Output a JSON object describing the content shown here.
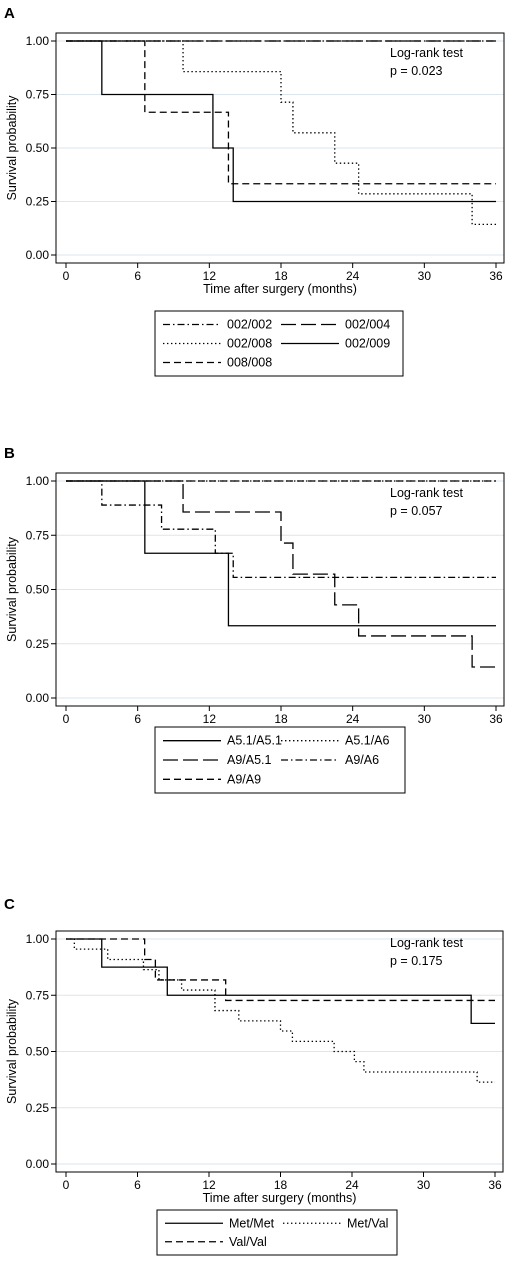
{
  "chart_data": [
    {
      "panel": "A",
      "type": "line",
      "step": true,
      "xlabel": "Time after surgery (months)",
      "ylabel": "Survival probability",
      "xlim": [
        0,
        36
      ],
      "ylim": [
        0,
        1
      ],
      "xticks": [
        0,
        6,
        12,
        18,
        24,
        30,
        36
      ],
      "yticks": [
        "0.00",
        "0.25",
        "0.50",
        "0.75",
        "1.00"
      ],
      "annotation": [
        "Log-rank test",
        "p = 0.023"
      ],
      "legend_position": "below",
      "series": [
        {
          "name": "002/002",
          "dash": "dashdot",
          "x": [
            0,
            36
          ],
          "y": [
            1,
            1
          ]
        },
        {
          "name": "002/004",
          "dash": "longdash",
          "x": [
            0,
            36
          ],
          "y": [
            1,
            1
          ]
        },
        {
          "name": "002/008",
          "dash": "dot",
          "x": [
            0,
            9.8,
            18,
            19,
            22.5,
            24.5,
            34,
            36
          ],
          "y": [
            1,
            0.857,
            0.714,
            0.571,
            0.429,
            0.286,
            0.143,
            0.143
          ]
        },
        {
          "name": "002/009",
          "dash": "solid",
          "x": [
            0,
            3,
            12.3,
            14,
            36
          ],
          "y": [
            1,
            0.75,
            0.5,
            0.25,
            0.25
          ]
        },
        {
          "name": "008/008",
          "dash": "dash",
          "x": [
            0,
            6.6,
            13.6,
            36
          ],
          "y": [
            1,
            0.667,
            0.333,
            0.333
          ]
        }
      ]
    },
    {
      "panel": "B",
      "type": "line",
      "step": true,
      "xlabel": "Time after surgery (months)",
      "ylabel": "Survival probability",
      "xlim": [
        0,
        36
      ],
      "ylim": [
        0,
        1
      ],
      "xticks": [
        0,
        6,
        12,
        18,
        24,
        30,
        36
      ],
      "yticks": [
        "0.00",
        "0.25",
        "0.50",
        "0.75",
        "1.00"
      ],
      "annotation": [
        "Log-rank test",
        "p = 0.057"
      ],
      "legend_position": "below",
      "series": [
        {
          "name": "A5.1/A5.1",
          "dash": "solid",
          "x": [
            0,
            6.6,
            13.6,
            36
          ],
          "y": [
            1,
            0.667,
            0.333,
            0.333
          ]
        },
        {
          "name": "A5.1/A6",
          "dash": "dot",
          "x": [
            0,
            36
          ],
          "y": [
            1,
            1
          ]
        },
        {
          "name": "A9/A5.1",
          "dash": "longdash",
          "x": [
            0,
            9.8,
            18,
            19,
            22.5,
            24.5,
            34,
            36
          ],
          "y": [
            1,
            0.857,
            0.714,
            0.571,
            0.429,
            0.286,
            0.143,
            0.143
          ]
        },
        {
          "name": "A9/A6",
          "dash": "dashdot",
          "x": [
            0,
            3,
            8,
            12.5,
            14,
            36
          ],
          "y": [
            1,
            0.889,
            0.778,
            0.667,
            0.556,
            0.556
          ]
        },
        {
          "name": "A9/A9",
          "dash": "dash",
          "x": [
            0,
            36
          ],
          "y": [
            1,
            1
          ]
        }
      ]
    },
    {
      "panel": "C",
      "type": "line",
      "step": true,
      "xlabel": "Time after surgery (months)",
      "ylabel": "Survival probability",
      "xlim": [
        0,
        36
      ],
      "ylim": [
        0,
        1
      ],
      "xticks": [
        0,
        6,
        12,
        18,
        24,
        30,
        36
      ],
      "yticks": [
        "0.00",
        "0.25",
        "0.50",
        "0.75",
        "1.00"
      ],
      "annotation": [
        "Log-rank test",
        "p = 0.175"
      ],
      "legend_position": "below",
      "series": [
        {
          "name": "Met/Met",
          "dash": "solid",
          "x": [
            0,
            3,
            8.5,
            34,
            36
          ],
          "y": [
            1,
            0.875,
            0.75,
            0.625,
            0.625
          ]
        },
        {
          "name": "Met/Val",
          "dash": "dot",
          "x": [
            0,
            0.7,
            3.5,
            6.5,
            7.8,
            9.7,
            12.5,
            14.5,
            18,
            19,
            22.5,
            24.2,
            25,
            34.5,
            36
          ],
          "y": [
            1,
            0.955,
            0.909,
            0.864,
            0.818,
            0.773,
            0.682,
            0.636,
            0.591,
            0.545,
            0.5,
            0.455,
            0.409,
            0.364,
            0.364
          ]
        },
        {
          "name": "Val/Val",
          "dash": "dash",
          "x": [
            0,
            6.6,
            7.5,
            13.4,
            36
          ],
          "y": [
            1,
            0.909,
            0.818,
            0.727,
            0.727
          ]
        }
      ]
    }
  ]
}
